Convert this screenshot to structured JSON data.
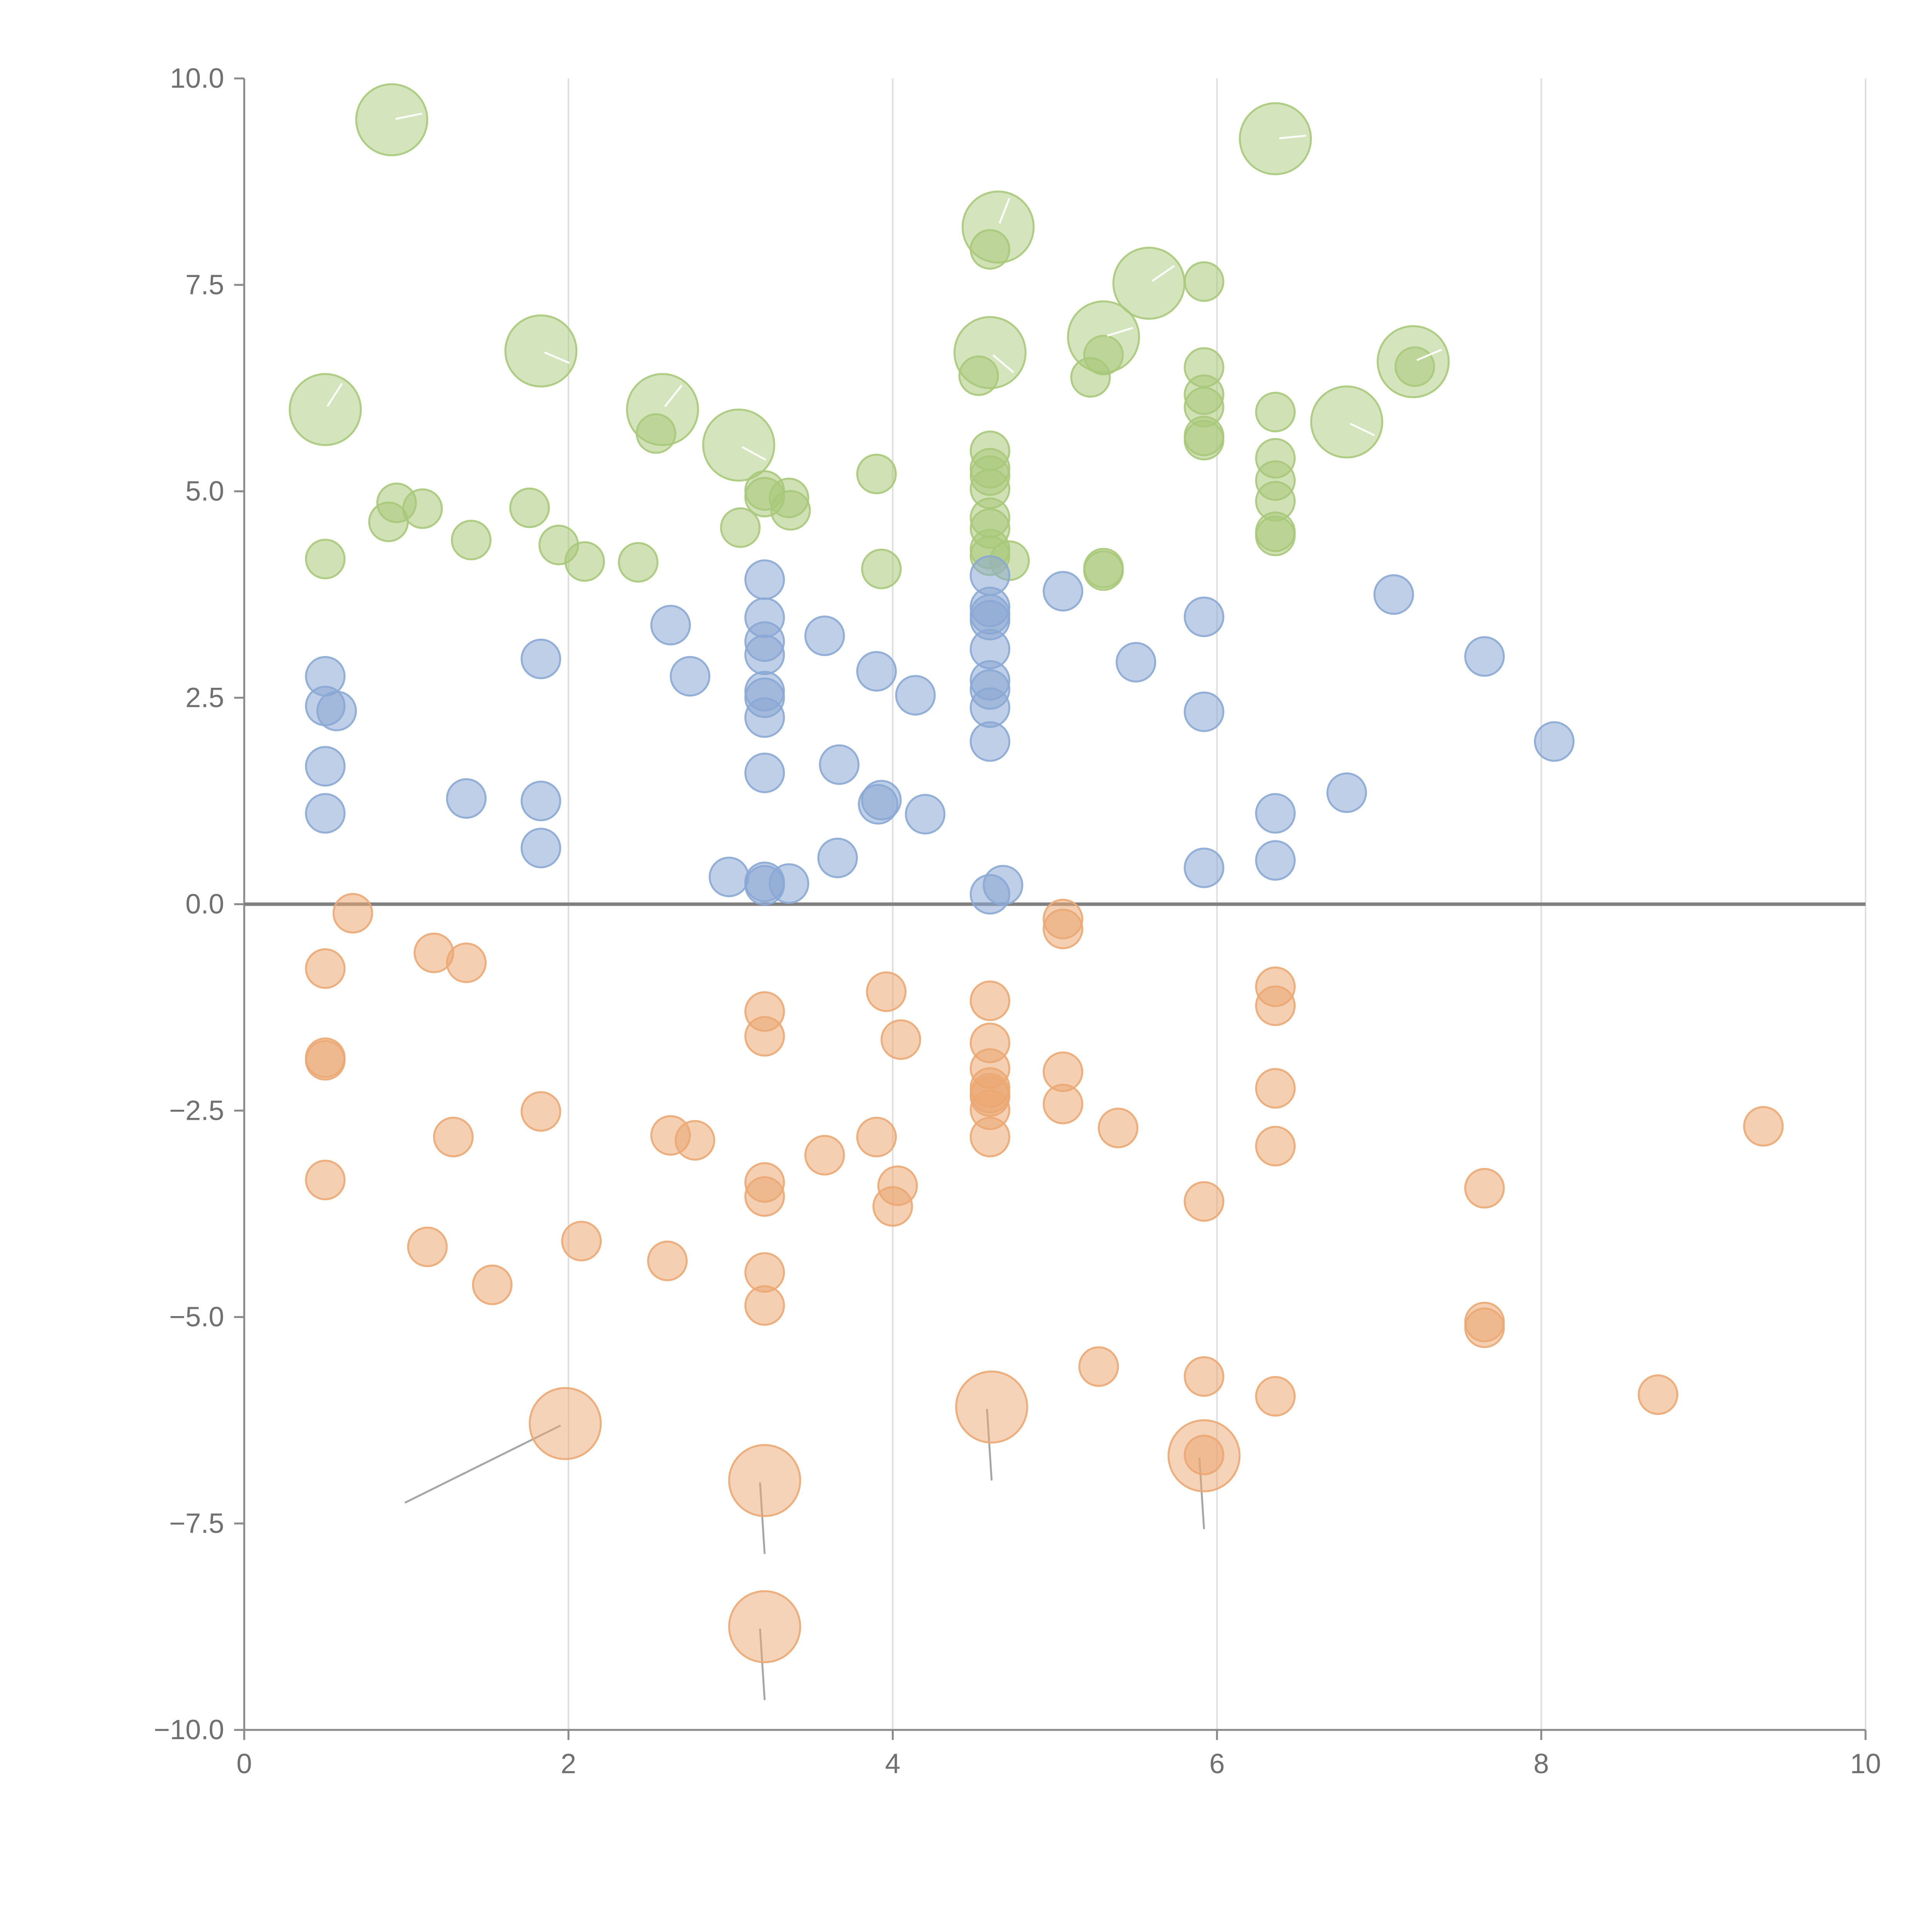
{
  "chart_data": {
    "type": "scatter",
    "title": "",
    "xlabel": "",
    "ylabel": "",
    "xlim": [
      0,
      10
    ],
    "ylim": [
      -10,
      10
    ],
    "x_ticks": [
      0,
      2,
      4,
      6,
      8,
      10
    ],
    "y_ticks": [
      -10,
      -7.5,
      -5,
      -2.5,
      0,
      2.5,
      5,
      7.5,
      10
    ],
    "x_tick_labels": [
      "0",
      "2",
      "4",
      "6",
      "8",
      "10"
    ],
    "y_tick_labels": [
      "−10.0",
      "−7.5",
      "−5.0",
      "−2.5",
      "0.0",
      "2.5",
      "5.0",
      "7.5",
      "10.0"
    ],
    "grid": "vertical",
    "zero_line": true,
    "legend": "none",
    "series": [
      {
        "name": "green",
        "color": "#a9c97a",
        "large_points": [
          [
            0.91,
            9.5
          ],
          [
            6.36,
            9.27
          ],
          [
            4.65,
            8.2
          ],
          [
            5.58,
            7.52
          ],
          [
            1.83,
            6.7
          ],
          [
            5.3,
            6.87
          ],
          [
            4.6,
            6.68
          ],
          [
            7.21,
            6.57
          ],
          [
            0.5,
            5.99
          ],
          [
            2.58,
            5.99
          ],
          [
            3.05,
            5.56
          ],
          [
            6.8,
            5.84
          ]
        ],
        "points": [
          [
            4.6,
            7.93
          ],
          [
            5.92,
            7.54
          ],
          [
            5.3,
            6.65
          ],
          [
            4.53,
            6.4
          ],
          [
            5.22,
            6.38
          ],
          [
            7.22,
            6.51
          ],
          [
            5.92,
            6.5
          ],
          [
            5.92,
            6.17
          ],
          [
            5.92,
            6.02
          ],
          [
            6.36,
            5.96
          ],
          [
            5.92,
            5.67
          ],
          [
            5.92,
            5.62
          ],
          [
            2.54,
            5.7
          ],
          [
            4.6,
            5.49
          ],
          [
            6.36,
            5.4
          ],
          [
            4.6,
            5.28
          ],
          [
            4.6,
            5.19
          ],
          [
            3.9,
            5.21
          ],
          [
            6.36,
            5.13
          ],
          [
            4.6,
            5.03
          ],
          [
            3.21,
            5.01
          ],
          [
            3.21,
            4.93
          ],
          [
            3.36,
            4.92
          ],
          [
            6.36,
            4.88
          ],
          [
            0.94,
            4.86
          ],
          [
            1.1,
            4.79
          ],
          [
            1.76,
            4.8
          ],
          [
            3.37,
            4.77
          ],
          [
            0.89,
            4.63
          ],
          [
            4.6,
            4.68
          ],
          [
            3.06,
            4.56
          ],
          [
            4.6,
            4.55
          ],
          [
            6.36,
            4.51
          ],
          [
            6.36,
            4.46
          ],
          [
            1.4,
            4.41
          ],
          [
            1.94,
            4.35
          ],
          [
            4.6,
            4.3
          ],
          [
            4.6,
            4.22
          ],
          [
            0.5,
            4.18
          ],
          [
            2.1,
            4.15
          ],
          [
            2.43,
            4.14
          ],
          [
            4.72,
            4.16
          ],
          [
            3.93,
            4.06
          ],
          [
            5.3,
            4.07
          ],
          [
            5.3,
            4.04
          ]
        ]
      },
      {
        "name": "blue",
        "color": "#8aa8d4",
        "points": [
          [
            4.6,
            3.98
          ],
          [
            3.21,
            3.93
          ],
          [
            5.05,
            3.79
          ],
          [
            7.09,
            3.75
          ],
          [
            4.6,
            3.6
          ],
          [
            4.6,
            3.51
          ],
          [
            3.21,
            3.47
          ],
          [
            5.92,
            3.48
          ],
          [
            4.6,
            3.44
          ],
          [
            2.63,
            3.38
          ],
          [
            3.58,
            3.25
          ],
          [
            3.21,
            3.18
          ],
          [
            4.6,
            3.09
          ],
          [
            3.21,
            3.02
          ],
          [
            7.65,
            3.0
          ],
          [
            1.83,
            2.97
          ],
          [
            5.5,
            2.93
          ],
          [
            3.9,
            2.82
          ],
          [
            0.5,
            2.76
          ],
          [
            2.75,
            2.76
          ],
          [
            4.6,
            2.71
          ],
          [
            4.6,
            2.6
          ],
          [
            3.21,
            2.58
          ],
          [
            4.14,
            2.53
          ],
          [
            3.21,
            2.5
          ],
          [
            0.5,
            2.4
          ],
          [
            4.6,
            2.38
          ],
          [
            0.57,
            2.34
          ],
          [
            5.92,
            2.33
          ],
          [
            3.21,
            2.26
          ],
          [
            4.6,
            1.97
          ],
          [
            8.08,
            1.97
          ],
          [
            3.67,
            1.69
          ],
          [
            0.5,
            1.67
          ],
          [
            3.21,
            1.59
          ],
          [
            1.37,
            1.28
          ],
          [
            1.83,
            1.25
          ],
          [
            3.93,
            1.26
          ],
          [
            3.91,
            1.21
          ],
          [
            6.8,
            1.35
          ],
          [
            6.36,
            1.1
          ],
          [
            4.2,
            1.09
          ],
          [
            0.5,
            1.1
          ],
          [
            1.83,
            0.68
          ],
          [
            3.66,
            0.56
          ],
          [
            6.36,
            0.53
          ],
          [
            5.92,
            0.44
          ],
          [
            2.99,
            0.33
          ],
          [
            3.21,
            0.27
          ],
          [
            3.36,
            0.25
          ],
          [
            3.21,
            0.23
          ],
          [
            4.68,
            0.23
          ],
          [
            4.6,
            0.12
          ]
        ]
      },
      {
        "name": "orange",
        "color": "#eba873",
        "large_points": [
          [
            1.98,
            -6.29
          ],
          [
            4.61,
            -6.09
          ],
          [
            5.92,
            -6.68
          ],
          [
            3.21,
            -6.98
          ],
          [
            3.21,
            -8.75
          ]
        ],
        "points": [
          [
            0.67,
            -0.11
          ],
          [
            5.05,
            -0.18
          ],
          [
            5.05,
            -0.3
          ],
          [
            1.17,
            -0.59
          ],
          [
            1.37,
            -0.71
          ],
          [
            0.5,
            -0.78
          ],
          [
            6.36,
            -1.0
          ],
          [
            3.96,
            -1.06
          ],
          [
            4.6,
            -1.17
          ],
          [
            6.36,
            -1.23
          ],
          [
            3.21,
            -1.3
          ],
          [
            3.21,
            -1.6
          ],
          [
            4.05,
            -1.64
          ],
          [
            4.6,
            -1.68
          ],
          [
            0.5,
            -1.86
          ],
          [
            0.5,
            -1.89
          ],
          [
            4.6,
            -1.99
          ],
          [
            5.05,
            -2.03
          ],
          [
            4.6,
            -2.22
          ],
          [
            6.36,
            -2.23
          ],
          [
            4.6,
            -2.29
          ],
          [
            4.6,
            -2.33
          ],
          [
            5.05,
            -2.42
          ],
          [
            4.6,
            -2.49
          ],
          [
            1.83,
            -2.51
          ],
          [
            5.39,
            -2.71
          ],
          [
            9.37,
            -2.69
          ],
          [
            2.63,
            -2.8
          ],
          [
            3.9,
            -2.82
          ],
          [
            1.29,
            -2.82
          ],
          [
            2.78,
            -2.86
          ],
          [
            4.6,
            -2.82
          ],
          [
            6.36,
            -2.93
          ],
          [
            3.58,
            -3.04
          ],
          [
            0.5,
            -3.34
          ],
          [
            3.21,
            -3.37
          ],
          [
            4.03,
            -3.41
          ],
          [
            7.65,
            -3.44
          ],
          [
            3.21,
            -3.54
          ],
          [
            5.92,
            -3.6
          ],
          [
            4.0,
            -3.66
          ],
          [
            2.08,
            -4.08
          ],
          [
            1.13,
            -4.15
          ],
          [
            2.61,
            -4.32
          ],
          [
            3.21,
            -4.46
          ],
          [
            1.53,
            -4.61
          ],
          [
            3.21,
            -4.86
          ],
          [
            7.65,
            -5.06
          ],
          [
            7.65,
            -5.13
          ],
          [
            5.27,
            -5.6
          ],
          [
            5.92,
            -5.72
          ],
          [
            8.72,
            -5.94
          ],
          [
            6.36,
            -5.96
          ],
          [
            5.92,
            -6.67
          ]
        ]
      }
    ]
  }
}
